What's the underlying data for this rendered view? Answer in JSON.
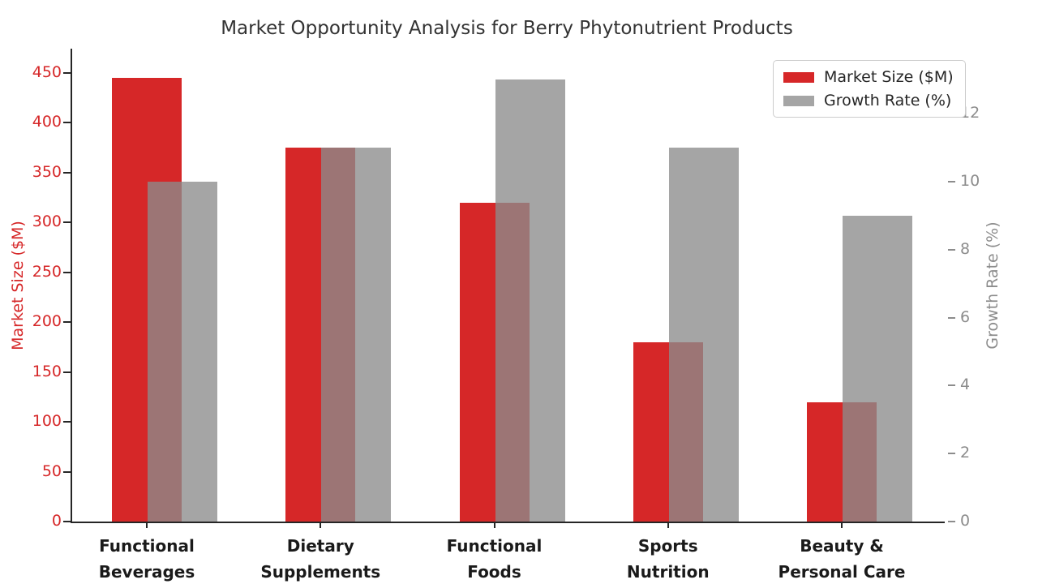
{
  "title": "Market Opportunity Analysis for Berry Phytonutrient Products",
  "chart_data": {
    "type": "bar",
    "title": "Market Opportunity Analysis for Berry Phytonutrient Products",
    "categories": [
      "Functional Beverages",
      "Dietary Supplements",
      "Functional Foods",
      "Sports Nutrition",
      "Beauty & Personal Care"
    ],
    "category_label_lines": [
      [
        "Functional",
        "Beverages"
      ],
      [
        "Dietary",
        "Supplements"
      ],
      [
        "Functional",
        "Foods"
      ],
      [
        "Sports",
        "Nutrition"
      ],
      [
        "Beauty &",
        "Personal Care"
      ]
    ],
    "series": [
      {
        "name": "Market Size ($M)",
        "axis": "left",
        "color": "#d62728",
        "values": [
          445,
          375,
          320,
          180,
          120
        ]
      },
      {
        "name": "Growth Rate (%)",
        "axis": "right",
        "color": "#a9a9a9",
        "values": [
          10,
          11,
          13,
          11,
          9
        ]
      }
    ],
    "y_left": {
      "label": "Market Size ($M)",
      "ticks": [
        0,
        50,
        100,
        150,
        200,
        250,
        300,
        350,
        400,
        450
      ],
      "range": [
        0,
        474
      ],
      "color": "#d62728"
    },
    "y_right": {
      "label": "Growth Rate (%)",
      "ticks": [
        0,
        2,
        4,
        6,
        8,
        10,
        12
      ],
      "range": [
        0,
        13.9
      ],
      "color": "#8c8c8c"
    },
    "legend": {
      "position": "upper right",
      "entries": [
        "Market Size ($M)",
        "Growth Rate (%)"
      ]
    },
    "grid": false
  },
  "colors": {
    "red_bar": "#d62728",
    "gray_bar": "#a9a9a9",
    "spine": "#262626",
    "title_text": "#333333"
  }
}
